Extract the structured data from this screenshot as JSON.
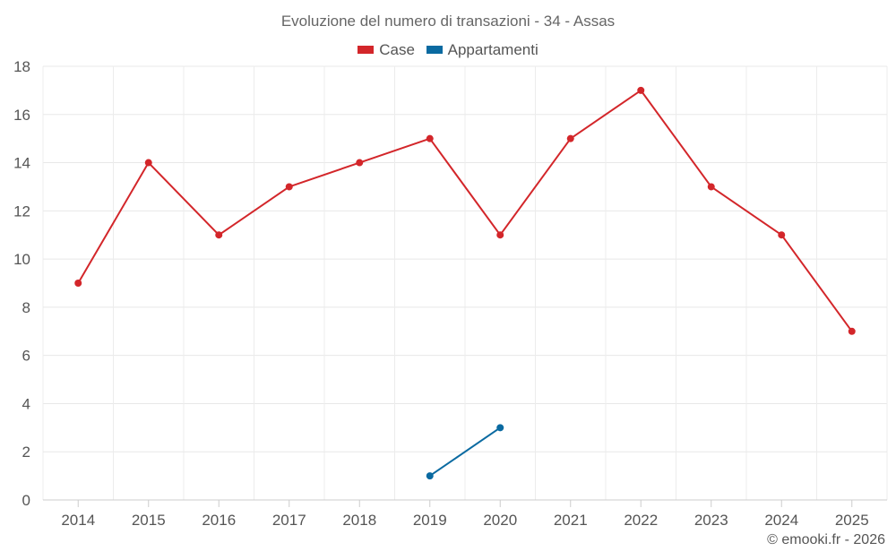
{
  "chart_data": {
    "type": "line",
    "title": "Evoluzione del numero di transazioni - 34 - Assas",
    "categories": [
      "2014",
      "2015",
      "2016",
      "2017",
      "2018",
      "2019",
      "2020",
      "2021",
      "2022",
      "2023",
      "2024",
      "2025"
    ],
    "series": [
      {
        "name": "Case",
        "color": "#d3262a",
        "values": [
          9,
          14,
          11,
          13,
          14,
          15,
          11,
          15,
          17,
          13,
          11,
          7
        ]
      },
      {
        "name": "Appartamenti",
        "color": "#0a6aa1",
        "values": [
          null,
          null,
          null,
          null,
          null,
          1,
          3,
          null,
          null,
          null,
          null,
          null
        ]
      }
    ],
    "ylim": [
      0,
      18
    ],
    "yticks": [
      "0",
      "2",
      "4",
      "6",
      "8",
      "10",
      "12",
      "14",
      "16",
      "18"
    ],
    "grid": true,
    "legend_position": "top-center"
  },
  "credit": "© emooki.fr - 2026"
}
